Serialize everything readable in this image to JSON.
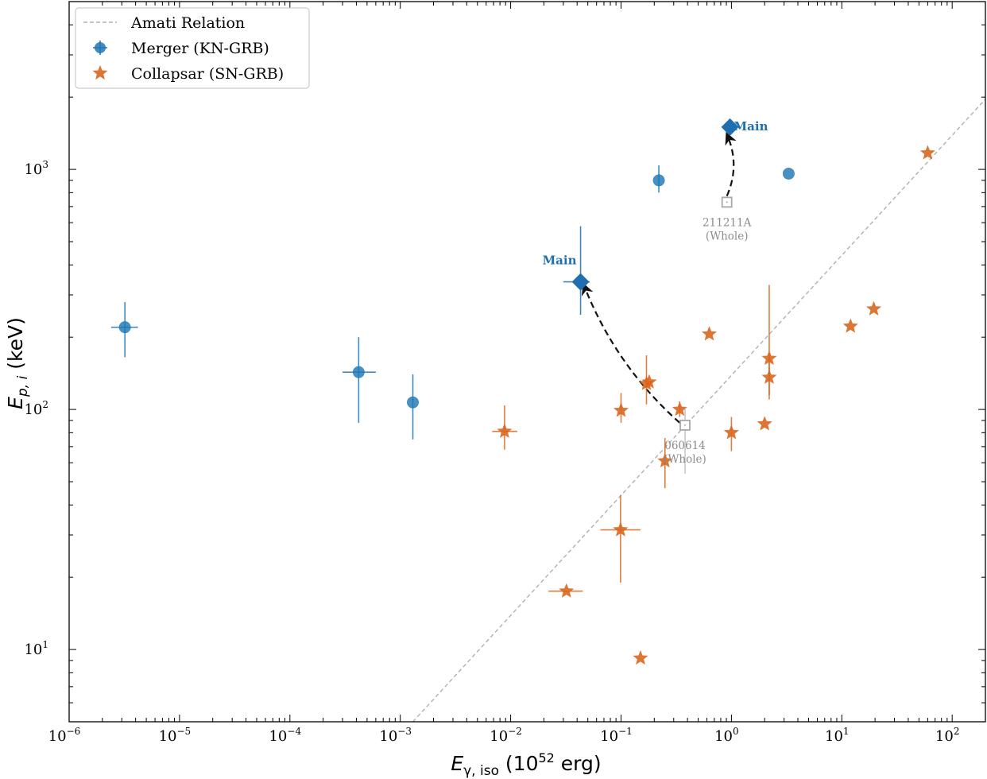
{
  "chart_data": {
    "type": "scatter",
    "xscale": "log",
    "yscale": "log",
    "xlim": [
      1e-06,
      200
    ],
    "ylim": [
      5,
      5000
    ],
    "xlabel": {
      "main": "E",
      "sub": "γ, iso",
      "rest": " (10",
      "exp": "52",
      "tail": " erg)"
    },
    "ylabel": {
      "main": "E",
      "sub": "p, i",
      "rest": " (keV)"
    },
    "x_ticks": [
      {
        "value": 1e-06,
        "base": "10",
        "exp": "−6"
      },
      {
        "value": 1e-05,
        "base": "10",
        "exp": "−5"
      },
      {
        "value": 0.0001,
        "base": "10",
        "exp": "−4"
      },
      {
        "value": 0.001,
        "base": "10",
        "exp": "−3"
      },
      {
        "value": 0.01,
        "base": "10",
        "exp": "−2"
      },
      {
        "value": 0.1,
        "base": "10",
        "exp": "−1"
      },
      {
        "value": 1,
        "base": "10",
        "exp": "0"
      },
      {
        "value": 10,
        "base": "10",
        "exp": "1"
      },
      {
        "value": 100,
        "base": "10",
        "exp": "2"
      }
    ],
    "y_ticks": [
      {
        "value": 10,
        "base": "10",
        "exp": "1"
      },
      {
        "value": 100,
        "base": "10",
        "exp": "2"
      },
      {
        "value": 1000,
        "base": "10",
        "exp": "3"
      }
    ],
    "legend": {
      "position": "top-left",
      "entries": [
        {
          "label": "Amati Relation",
          "kind": "line",
          "color": "#b0b0b0"
        },
        {
          "label": "Merger (KN-GRB)",
          "kind": "circle",
          "color": "#1f77b4"
        },
        {
          "label": "Collapsar (SN-GRB)",
          "kind": "star",
          "color": "#d9661f"
        }
      ]
    },
    "amati": {
      "label": "Amati Relation",
      "norm_y": 100,
      "norm_x": 0.52,
      "slope": 0.5,
      "color": "#b0b0b0"
    },
    "series": [
      {
        "name": "Merger (KN-GRB)",
        "marker": "circle",
        "color": "#1f77b4",
        "points": [
          {
            "x": 3.2e-06,
            "y": 220,
            "xlo": 2.4e-06,
            "xhi": 4.2e-06,
            "ylo": 165,
            "yhi": 280
          },
          {
            "x": 0.00042,
            "y": 143,
            "xlo": 0.0003,
            "xhi": 0.0006,
            "ylo": 88,
            "yhi": 200
          },
          {
            "x": 0.0013,
            "y": 107,
            "ylo": 75,
            "yhi": 140
          },
          {
            "x": 0.22,
            "y": 900,
            "ylo": 800,
            "yhi": 1040
          },
          {
            "x": 3.3,
            "y": 960
          }
        ]
      },
      {
        "name": "Collapsar (SN-GRB)",
        "marker": "star",
        "color": "#d9661f",
        "points": [
          {
            "x": 0.0088,
            "y": 81,
            "xlo": 0.0068,
            "xhi": 0.0115,
            "ylo": 68,
            "yhi": 104
          },
          {
            "x": 0.032,
            "y": 17.5,
            "xlo": 0.022,
            "xhi": 0.045
          },
          {
            "x": 0.099,
            "y": 31.5,
            "xlo": 0.065,
            "xhi": 0.15,
            "ylo": 19,
            "yhi": 44
          },
          {
            "x": 0.1,
            "y": 99,
            "ylo": 88,
            "yhi": 117
          },
          {
            "x": 0.15,
            "y": 9.2
          },
          {
            "x": 0.17,
            "y": 128,
            "ylo": 105,
            "yhi": 168
          },
          {
            "x": 0.18,
            "y": 130
          },
          {
            "x": 0.25,
            "y": 61,
            "ylo": 47,
            "yhi": 76
          },
          {
            "x": 0.34,
            "y": 100,
            "ylo": 93,
            "yhi": 108
          },
          {
            "x": 0.63,
            "y": 206
          },
          {
            "x": 1.0,
            "y": 80,
            "ylo": 67,
            "yhi": 93
          },
          {
            "x": 2.0,
            "y": 87
          },
          {
            "x": 2.2,
            "y": 163,
            "ylo": 115,
            "yhi": 330
          },
          {
            "x": 2.2,
            "y": 136,
            "ylo": 110,
            "yhi": 165
          },
          {
            "x": 12.0,
            "y": 222
          },
          {
            "x": 19.5,
            "y": 262
          },
          {
            "x": 60.0,
            "y": 1170
          }
        ]
      },
      {
        "name": "Main episodes",
        "marker": "diamond",
        "color": "#1f6fb0",
        "points": [
          {
            "x": 0.043,
            "y": 340,
            "xlo": 0.03,
            "xhi": 0.052,
            "ylo": 248,
            "yhi": 580,
            "label": "Main"
          },
          {
            "x": 0.97,
            "y": 1500,
            "label": "Main"
          }
        ]
      },
      {
        "name": "Whole bursts",
        "marker": "square-open",
        "color": "#a8a8a8",
        "points": [
          {
            "x": 0.38,
            "y": 86,
            "ylo": 54,
            "yhi": 102,
            "label": [
              "060614",
              "(Whole)"
            ]
          },
          {
            "x": 0.91,
            "y": 730,
            "label": [
              "211211A",
              "(Whole)"
            ]
          }
        ]
      }
    ],
    "arrows": [
      {
        "from_x": 0.34,
        "from_y": 88,
        "to_x": 0.046,
        "to_y": 330,
        "bend": -0.12
      },
      {
        "from_x": 0.91,
        "from_y": 775,
        "to_x": 0.91,
        "to_y": 1400,
        "bend": 0.22
      }
    ]
  }
}
